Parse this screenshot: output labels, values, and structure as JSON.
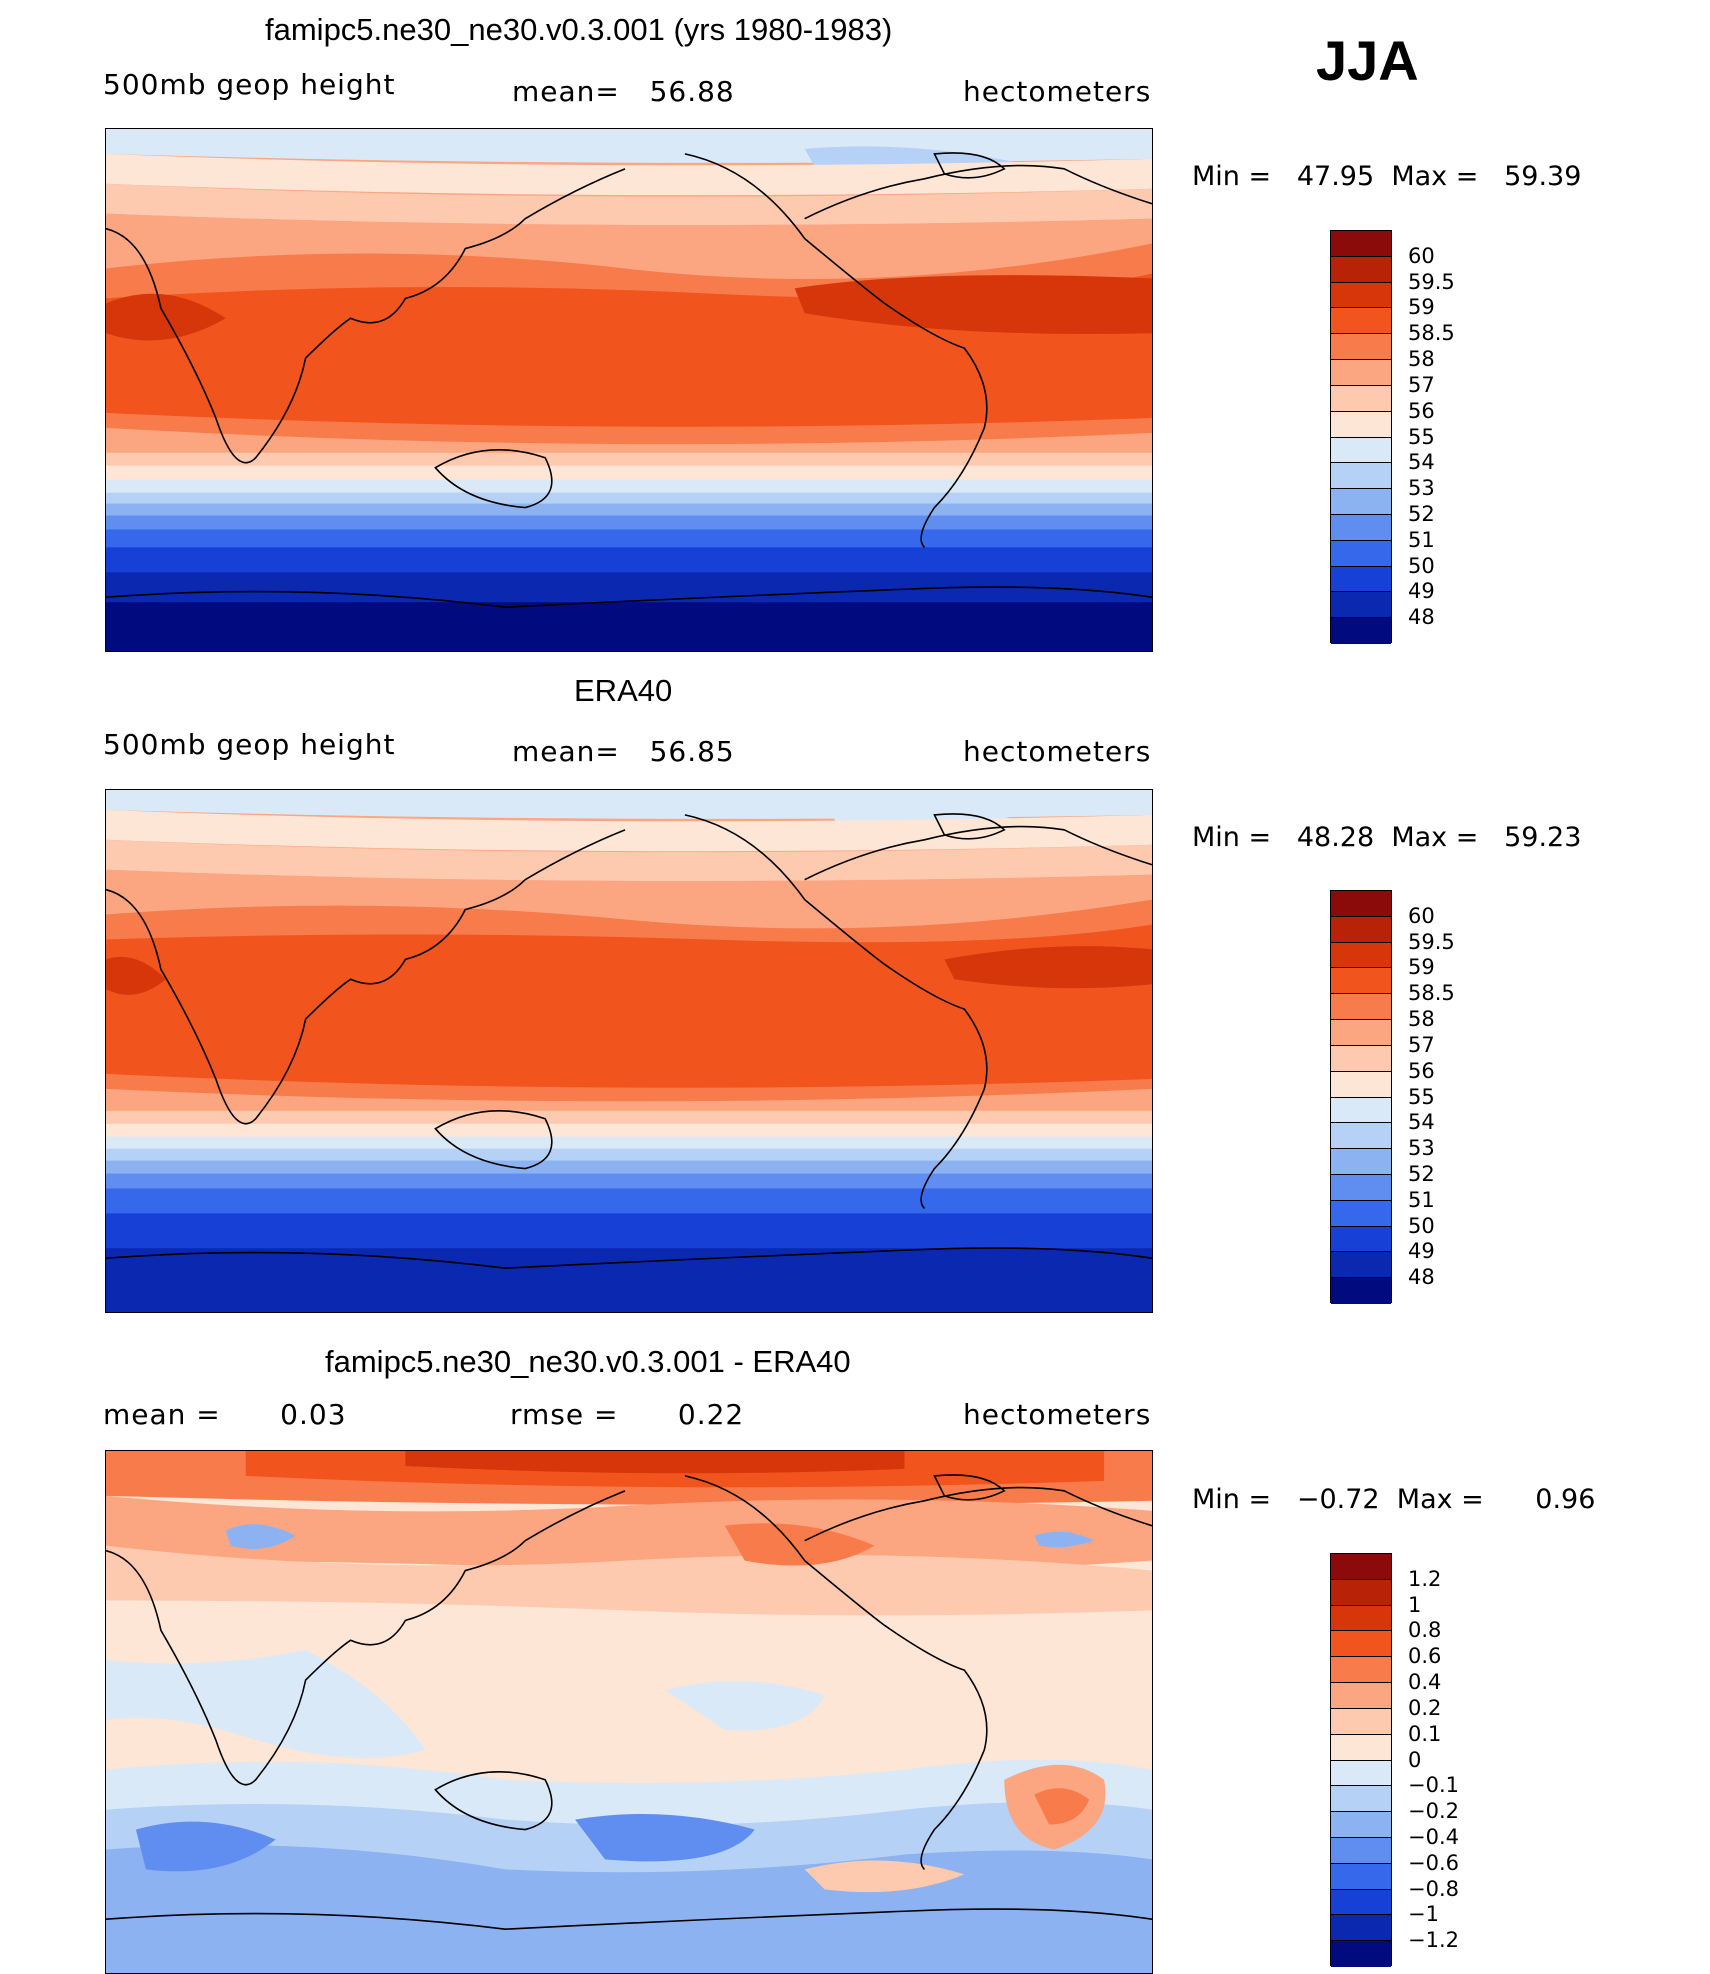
{
  "season": "JJA",
  "panels": [
    {
      "title": "famipc5.ne30_ne30.v0.3.001 (yrs 1980-1983)",
      "left_label": "500mb geop height",
      "center_label": "mean=   56.88",
      "right_label": "hectometers",
      "min_max": "Min =   47.95  Max =   59.39",
      "colorbar": {
        "labels": [
          "60",
          "59.5",
          "59",
          "58.5",
          "58",
          "57",
          "56",
          "55",
          "54",
          "53",
          "52",
          "51",
          "50",
          "49",
          "48"
        ],
        "colors": [
          "#8b0a0a",
          "#b82308",
          "#d6360a",
          "#f2541e",
          "#f77b4b",
          "#fba581",
          "#fdc9af",
          "#fde6d5",
          "#dae9f8",
          "#b5d1f5",
          "#8cb2f2",
          "#5f8ef0",
          "#3568ea",
          "#1741d6",
          "#0a28b0",
          "#020a80"
        ]
      }
    },
    {
      "title": "ERA40",
      "left_label": "500mb geop height",
      "center_label": "mean=   56.85",
      "right_label": "hectometers",
      "min_max": "Min =   48.28  Max =   59.23",
      "colorbar": {
        "labels": [
          "60",
          "59.5",
          "59",
          "58.5",
          "58",
          "57",
          "56",
          "55",
          "54",
          "53",
          "52",
          "51",
          "50",
          "49",
          "48"
        ],
        "colors": [
          "#8b0a0a",
          "#b82308",
          "#d6360a",
          "#f2541e",
          "#f77b4b",
          "#fba581",
          "#fdc9af",
          "#fde6d5",
          "#dae9f8",
          "#b5d1f5",
          "#8cb2f2",
          "#5f8ef0",
          "#3568ea",
          "#1741d6",
          "#0a28b0",
          "#020a80"
        ]
      }
    },
    {
      "title": "famipc5.ne30_ne30.v0.3.001 - ERA40",
      "left_label": "mean =      0.03",
      "center_label": "rmse =      0.22",
      "right_label": "hectometers",
      "min_max": "Min =   −0.72  Max =      0.96",
      "colorbar": {
        "labels": [
          "1.2",
          "1",
          "0.8",
          "0.6",
          "0.4",
          "0.2",
          "0.1",
          "0",
          "−0.1",
          "−0.2",
          "−0.4",
          "−0.6",
          "−0.8",
          "−1",
          "−1.2"
        ],
        "colors": [
          "#8b0a0a",
          "#b82308",
          "#d6360a",
          "#f2541e",
          "#f77b4b",
          "#fba581",
          "#fdc9af",
          "#fde6d5",
          "#dae9f8",
          "#b5d1f5",
          "#8cb2f2",
          "#5f8ef0",
          "#3568ea",
          "#1741d6",
          "#0a28b0",
          "#020a80"
        ]
      }
    }
  ]
}
